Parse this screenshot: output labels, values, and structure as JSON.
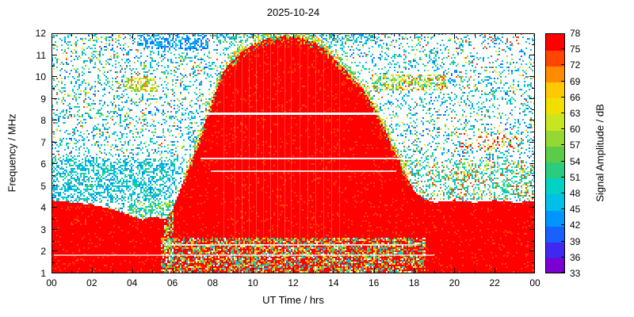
{
  "chart_data": {
    "type": "heatmap",
    "title": "2025-10-24",
    "xlabel": "UT Time / hrs",
    "ylabel": "Frequency / MHz",
    "colorbar_label": "Signal Amplitude / dB",
    "xlim": [
      0,
      24
    ],
    "ylim": [
      1,
      12
    ],
    "x_tick_values": [
      0,
      2,
      4,
      6,
      8,
      10,
      12,
      14,
      16,
      18,
      20,
      22,
      24
    ],
    "x_tick_labels": [
      "00",
      "02",
      "04",
      "06",
      "08",
      "10",
      "12",
      "14",
      "16",
      "18",
      "20",
      "22",
      "00"
    ],
    "y_tick_values": [
      1,
      2,
      3,
      4,
      5,
      6,
      7,
      8,
      9,
      10,
      11,
      12
    ],
    "y_tick_labels": [
      "1",
      "2",
      "3",
      "4",
      "5",
      "6",
      "7",
      "8",
      "9",
      "10",
      "11",
      "12"
    ],
    "colorbar_range": [
      33,
      78
    ],
    "colorbar_tick_values": [
      33,
      36,
      39,
      42,
      45,
      48,
      51,
      54,
      57,
      60,
      63,
      66,
      69,
      72,
      75,
      78
    ],
    "colormap": [
      "#7a00d4",
      "#4128f0",
      "#1961ff",
      "#0096ff",
      "#00c0e8",
      "#00d2c3",
      "#2bcc7d",
      "#5ccc47",
      "#96d833",
      "#c8e620",
      "#f0e000",
      "#ffc800",
      "#ff8c00",
      "#ff4500",
      "#ff0000"
    ],
    "red_color": "#ff0000",
    "red_fleck_color": "#ff4500",
    "red_fleck_prob": 0.06,
    "red_envelope": [
      [
        0,
        4.35
      ],
      [
        1,
        4.25
      ],
      [
        2,
        4.15
      ],
      [
        3,
        3.95
      ],
      [
        3.8,
        3.7
      ],
      [
        4.5,
        3.45
      ],
      [
        5,
        3.6
      ],
      [
        5.6,
        3.5
      ],
      [
        6,
        3.9
      ],
      [
        6.5,
        5.1
      ],
      [
        7,
        6.3
      ],
      [
        7.5,
        7.6
      ],
      [
        8,
        9.0
      ],
      [
        8.5,
        10.2
      ],
      [
        9,
        10.8
      ],
      [
        9.5,
        11.2
      ],
      [
        10,
        11.5
      ],
      [
        10.7,
        11.75
      ],
      [
        11.5,
        11.9
      ],
      [
        12.2,
        11.85
      ],
      [
        13,
        11.6
      ],
      [
        13.6,
        11.25
      ],
      [
        14,
        10.9
      ],
      [
        14.5,
        10.4
      ],
      [
        15,
        9.9
      ],
      [
        15.5,
        9.4
      ],
      [
        16,
        8.7
      ],
      [
        16.5,
        7.7
      ],
      [
        17,
        6.7
      ],
      [
        17.5,
        5.7
      ],
      [
        18,
        4.8
      ],
      [
        18.5,
        4.4
      ],
      [
        19,
        4.25
      ],
      [
        20,
        4.35
      ],
      [
        21,
        4.25
      ],
      [
        22,
        4.35
      ],
      [
        23,
        4.25
      ],
      [
        24,
        4.3
      ]
    ],
    "white_lines": [
      {
        "f": 8.3,
        "t0": 7.6,
        "t1": 16.5,
        "w": 3,
        "a": 1
      },
      {
        "f": 6.25,
        "t0": 7.4,
        "t1": 17.4,
        "w": 2,
        "a": 0.9
      },
      {
        "f": 5.7,
        "t0": 7.9,
        "t1": 17.1,
        "w": 2,
        "a": 0.8
      },
      {
        "f": 2.3,
        "t0": 5.6,
        "t1": 18.2,
        "w": 2,
        "a": 0.75
      },
      {
        "f": 1.85,
        "t0": 0.1,
        "t1": 19.0,
        "w": 2,
        "a": 0.65
      }
    ],
    "background_speckle": {
      "density": 0.2,
      "palette": [
        "#00c0e8",
        "#00d2c3",
        "#0096ff",
        "#2bcc7d",
        "#1961ff",
        "#96d833",
        "#f0e000",
        "#ff4500"
      ],
      "weights": [
        0.3,
        0.16,
        0.14,
        0.1,
        0.1,
        0.08,
        0.07,
        0.05
      ]
    },
    "dense_patches": [
      {
        "t0": 0,
        "t1": 6.2,
        "f0": 4.3,
        "f1": 6.3,
        "density": 0.45,
        "palette": [
          "#00c0e8",
          "#00d2c3",
          "#0096ff",
          "#2bcc7d"
        ]
      },
      {
        "t0": 3.8,
        "t1": 6.2,
        "f0": 3.3,
        "f1": 4.4,
        "density": 0.5,
        "palette": [
          "#00d2c3",
          "#5ccc47",
          "#c8e620",
          "#00c0e8"
        ]
      },
      {
        "t0": 5.55,
        "t1": 6.05,
        "f0": 3.3,
        "f1": 5.6,
        "density": 0.45,
        "palette": [
          "#c8e620",
          "#00d2c3",
          "#5ccc47",
          "#00c0e8"
        ]
      },
      {
        "t0": 16.8,
        "t1": 24,
        "f0": 4.4,
        "f1": 6.2,
        "density": 0.42,
        "palette": [
          "#00c0e8",
          "#00d2c3",
          "#2bcc7d",
          "#c8e620",
          "#ff4500"
        ]
      },
      {
        "t0": 4.3,
        "t1": 7.8,
        "f0": 11.3,
        "f1": 12,
        "density": 0.5,
        "palette": [
          "#0096ff",
          "#00c0e8",
          "#1961ff"
        ]
      },
      {
        "t0": 8,
        "t1": 16.2,
        "f0": 11.55,
        "f1": 12,
        "density": 0.45,
        "palette": [
          "#00c0e8",
          "#0096ff",
          "#5ccc47"
        ]
      },
      {
        "t0": 3.7,
        "t1": 5.3,
        "f0": 9.3,
        "f1": 10.0,
        "density": 0.6,
        "palette": [
          "#c8e620",
          "#96d833",
          "#f0e000",
          "#5ccc47",
          "#ff8c00"
        ]
      },
      {
        "t0": 15.9,
        "t1": 19.6,
        "f0": 9.4,
        "f1": 10.1,
        "density": 0.55,
        "palette": [
          "#c8e620",
          "#f0e000",
          "#ff4500",
          "#5ccc47",
          "#00d2c3"
        ]
      },
      {
        "t0": 20.3,
        "t1": 23.2,
        "f0": 6.7,
        "f1": 7.4,
        "density": 0.28,
        "palette": [
          "#ff4500",
          "#ff0000",
          "#c8e620",
          "#00c0e8"
        ]
      },
      {
        "t0": 20.5,
        "t1": 23.5,
        "f0": 11.2,
        "f1": 11.9,
        "density": 0.18,
        "palette": [
          "#ff4500",
          "#0096ff",
          "#00c0e8"
        ]
      }
    ],
    "mottled_band": {
      "t0": 5.4,
      "t1": 18.6,
      "f0": 1.0,
      "f1": 2.6,
      "density": 0.5,
      "palette": [
        "#c8e620",
        "#5ccc47",
        "#00d2c3",
        "#f0e000",
        "#ff8c00",
        "#ffffff",
        "#00c0e8"
      ]
    },
    "speckle_column": {
      "t0": 5.55,
      "t1": 6.05,
      "f0": 1.0,
      "f1": 5.6,
      "density": 0.5,
      "palette": [
        "#c8e620",
        "#00d2c3",
        "#ffffff",
        "#5ccc47"
      ]
    },
    "edge_fringe": {
      "depth": 0.35,
      "palette": [
        "#ffc800",
        "#c8e620",
        "#5ccc47",
        "#00d2c3",
        "#ff8c00"
      ]
    },
    "streak_times": [
      8.55,
      9.1,
      9.45,
      9.8,
      10.15,
      10.5,
      10.85,
      11.2,
      11.55,
      11.9,
      12.3,
      12.7,
      13.1,
      13.5,
      13.9,
      14.3
    ],
    "streak_alpha": 0.22
  }
}
